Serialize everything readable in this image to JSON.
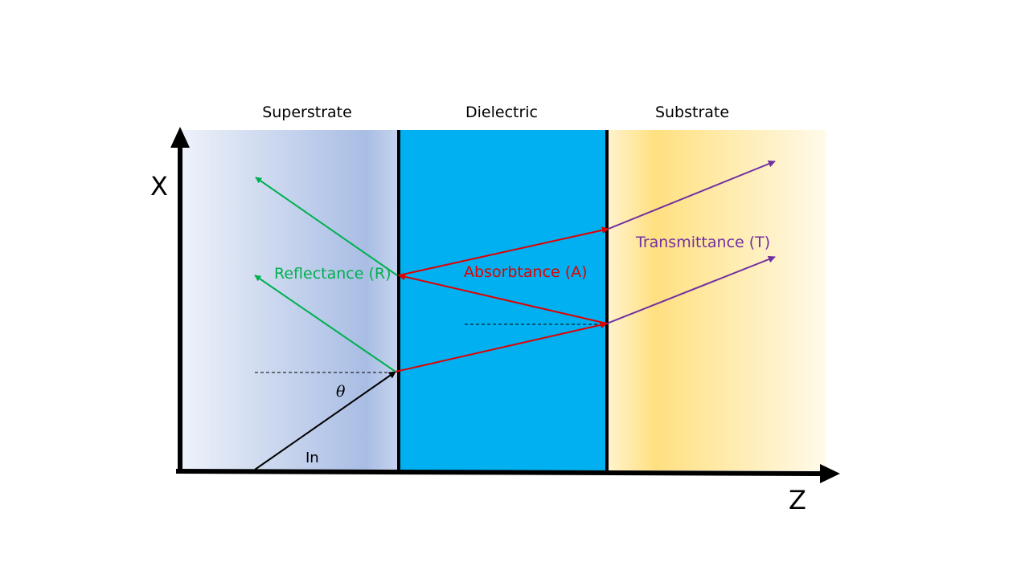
{
  "layers": {
    "superstrate": "Superstrate",
    "dielectric": "Dielectric",
    "substrate": "Substrate"
  },
  "axes": {
    "vertical": "X",
    "horizontal": "Z"
  },
  "rays": {
    "incident": "In",
    "angle": "θ",
    "reflectance": "Reflectance (R)",
    "absorbtance": "Absorbtance (A)",
    "transmittance": "Transmittance (T)"
  },
  "colors": {
    "superstrate_light": "#eef2fa",
    "superstrate_dark": "#a9bde4",
    "dielectric": "#00b0f0",
    "substrate_peak": "#ffe080",
    "substrate_light": "#fff9e6",
    "reflect": "#00b050",
    "absorb": "#e00000",
    "transmit": "#7030a0",
    "incident": "#000000"
  }
}
